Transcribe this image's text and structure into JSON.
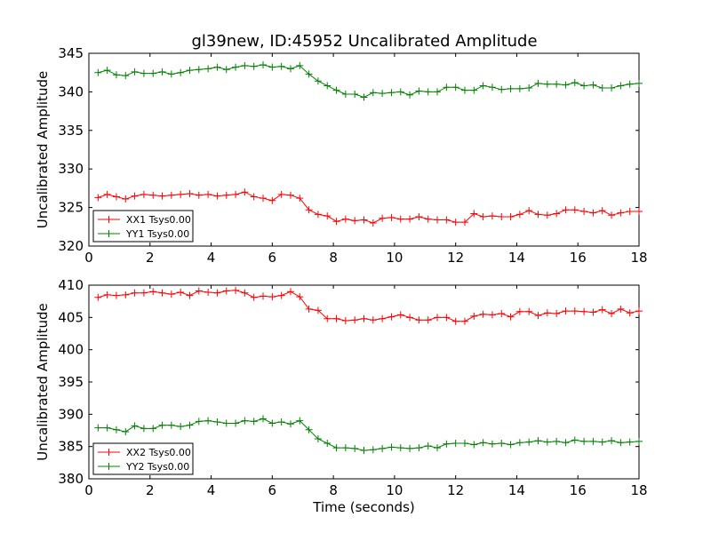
{
  "title": "gl39new, ID:45952 Uncalibrated Amplitude",
  "colors": {
    "red": "#ff0000",
    "green": "#008000"
  },
  "chart_data": [
    {
      "type": "line",
      "xlabel": "",
      "ylabel": "Uncalibrated Amplitude",
      "xlim": [
        0,
        18
      ],
      "ylim": [
        320,
        345
      ],
      "xticks": [
        0,
        2,
        4,
        6,
        8,
        10,
        12,
        14,
        16,
        18
      ],
      "yticks": [
        320,
        325,
        330,
        335,
        340,
        345
      ],
      "grid": false,
      "legend": "lower-left",
      "x": [
        0.3,
        0.6,
        0.9,
        1.2,
        1.5,
        1.8,
        2.1,
        2.4,
        2.7,
        3.0,
        3.3,
        3.6,
        3.9,
        4.2,
        4.5,
        4.8,
        5.1,
        5.4,
        5.7,
        6.0,
        6.3,
        6.6,
        6.9,
        7.2,
        7.5,
        7.8,
        8.1,
        8.4,
        8.7,
        9.0,
        9.3,
        9.6,
        9.9,
        10.2,
        10.5,
        10.8,
        11.1,
        11.4,
        11.7,
        12.0,
        12.3,
        12.6,
        12.9,
        13.2,
        13.5,
        13.8,
        14.1,
        14.4,
        14.7,
        15.0,
        15.3,
        15.6,
        15.9,
        16.2,
        16.5,
        16.8,
        17.1,
        17.4,
        17.7,
        18.0
      ],
      "series": [
        {
          "name": "XX1 Tsys0.00",
          "color": "#ff0000",
          "values": [
            326.3,
            326.7,
            326.4,
            326.1,
            326.5,
            326.7,
            326.6,
            326.5,
            326.6,
            326.7,
            326.8,
            326.6,
            326.7,
            326.5,
            326.6,
            326.7,
            327.0,
            326.4,
            326.2,
            325.9,
            326.7,
            326.6,
            326.2,
            324.7,
            324.1,
            323.9,
            323.2,
            323.5,
            323.3,
            323.4,
            323.0,
            323.6,
            323.7,
            323.5,
            323.5,
            323.8,
            323.5,
            323.4,
            323.4,
            323.1,
            323.1,
            324.2,
            323.8,
            323.9,
            323.8,
            323.8,
            324.1,
            324.6,
            324.1,
            324.0,
            324.2,
            324.7,
            324.7,
            324.5,
            324.3,
            324.6,
            324.0,
            324.3,
            324.5,
            324.5
          ]
        },
        {
          "name": "YY1 Tsys0.00",
          "color": "#008000",
          "values": [
            342.5,
            342.8,
            342.2,
            342.1,
            342.6,
            342.4,
            342.4,
            342.6,
            342.3,
            342.5,
            342.8,
            342.9,
            343.0,
            343.2,
            342.9,
            343.2,
            343.4,
            343.3,
            343.5,
            343.2,
            343.3,
            343.0,
            343.4,
            342.3,
            341.4,
            340.8,
            340.2,
            339.7,
            339.7,
            339.3,
            339.9,
            339.8,
            339.9,
            340.0,
            339.6,
            340.1,
            340.0,
            340.0,
            340.6,
            340.6,
            340.2,
            340.2,
            340.8,
            340.6,
            340.3,
            340.4,
            340.4,
            340.5,
            341.1,
            341.0,
            341.0,
            340.9,
            341.2,
            340.8,
            340.9,
            340.5,
            340.5,
            340.8,
            341.0,
            341.1
          ]
        }
      ]
    },
    {
      "type": "line",
      "xlabel": "Time (seconds)",
      "ylabel": "Uncalibrated Amplitude",
      "xlim": [
        0,
        18
      ],
      "ylim": [
        380,
        410
      ],
      "xticks": [
        0,
        2,
        4,
        6,
        8,
        10,
        12,
        14,
        16,
        18
      ],
      "yticks": [
        380,
        385,
        390,
        395,
        400,
        405,
        410
      ],
      "grid": false,
      "legend": "lower-left",
      "x": [
        0.3,
        0.6,
        0.9,
        1.2,
        1.5,
        1.8,
        2.1,
        2.4,
        2.7,
        3.0,
        3.3,
        3.6,
        3.9,
        4.2,
        4.5,
        4.8,
        5.1,
        5.4,
        5.7,
        6.0,
        6.3,
        6.6,
        6.9,
        7.2,
        7.5,
        7.8,
        8.1,
        8.4,
        8.7,
        9.0,
        9.3,
        9.6,
        9.9,
        10.2,
        10.5,
        10.8,
        11.1,
        11.4,
        11.7,
        12.0,
        12.3,
        12.6,
        12.9,
        13.2,
        13.5,
        13.8,
        14.1,
        14.4,
        14.7,
        15.0,
        15.3,
        15.6,
        15.9,
        16.2,
        16.5,
        16.8,
        17.1,
        17.4,
        17.7,
        18.0
      ],
      "series": [
        {
          "name": "XX2 Tsys0.00",
          "color": "#ff0000",
          "values": [
            408.1,
            408.5,
            408.4,
            408.5,
            408.8,
            408.8,
            409.0,
            408.8,
            408.6,
            408.9,
            408.4,
            409.1,
            408.9,
            408.8,
            409.1,
            409.2,
            408.8,
            408.1,
            408.3,
            408.2,
            408.4,
            409.0,
            408.2,
            406.3,
            406.1,
            404.8,
            404.8,
            404.5,
            404.6,
            404.8,
            404.6,
            404.8,
            405.1,
            405.4,
            405.0,
            404.6,
            404.6,
            405.0,
            405.0,
            404.4,
            404.4,
            405.2,
            405.5,
            405.4,
            405.6,
            405.1,
            405.9,
            405.9,
            405.3,
            405.7,
            405.6,
            406.0,
            406.0,
            405.9,
            405.8,
            406.2,
            405.6,
            406.3,
            405.7,
            406.0
          ]
        },
        {
          "name": "YY2 Tsys0.00",
          "color": "#008000",
          "values": [
            387.9,
            387.9,
            387.6,
            387.3,
            388.2,
            387.8,
            387.8,
            388.3,
            388.3,
            388.1,
            388.3,
            388.9,
            389.0,
            388.8,
            388.6,
            388.6,
            389.0,
            388.9,
            389.3,
            388.6,
            388.8,
            388.5,
            389.0,
            387.6,
            386.2,
            385.5,
            384.8,
            384.8,
            384.7,
            384.4,
            384.5,
            384.7,
            384.9,
            384.8,
            384.7,
            384.8,
            385.1,
            384.8,
            385.4,
            385.5,
            385.5,
            385.3,
            385.6,
            385.4,
            385.5,
            385.3,
            385.6,
            385.7,
            385.9,
            385.7,
            385.8,
            385.6,
            386.0,
            385.8,
            385.8,
            385.7,
            385.9,
            385.6,
            385.7,
            385.8
          ]
        }
      ]
    }
  ]
}
